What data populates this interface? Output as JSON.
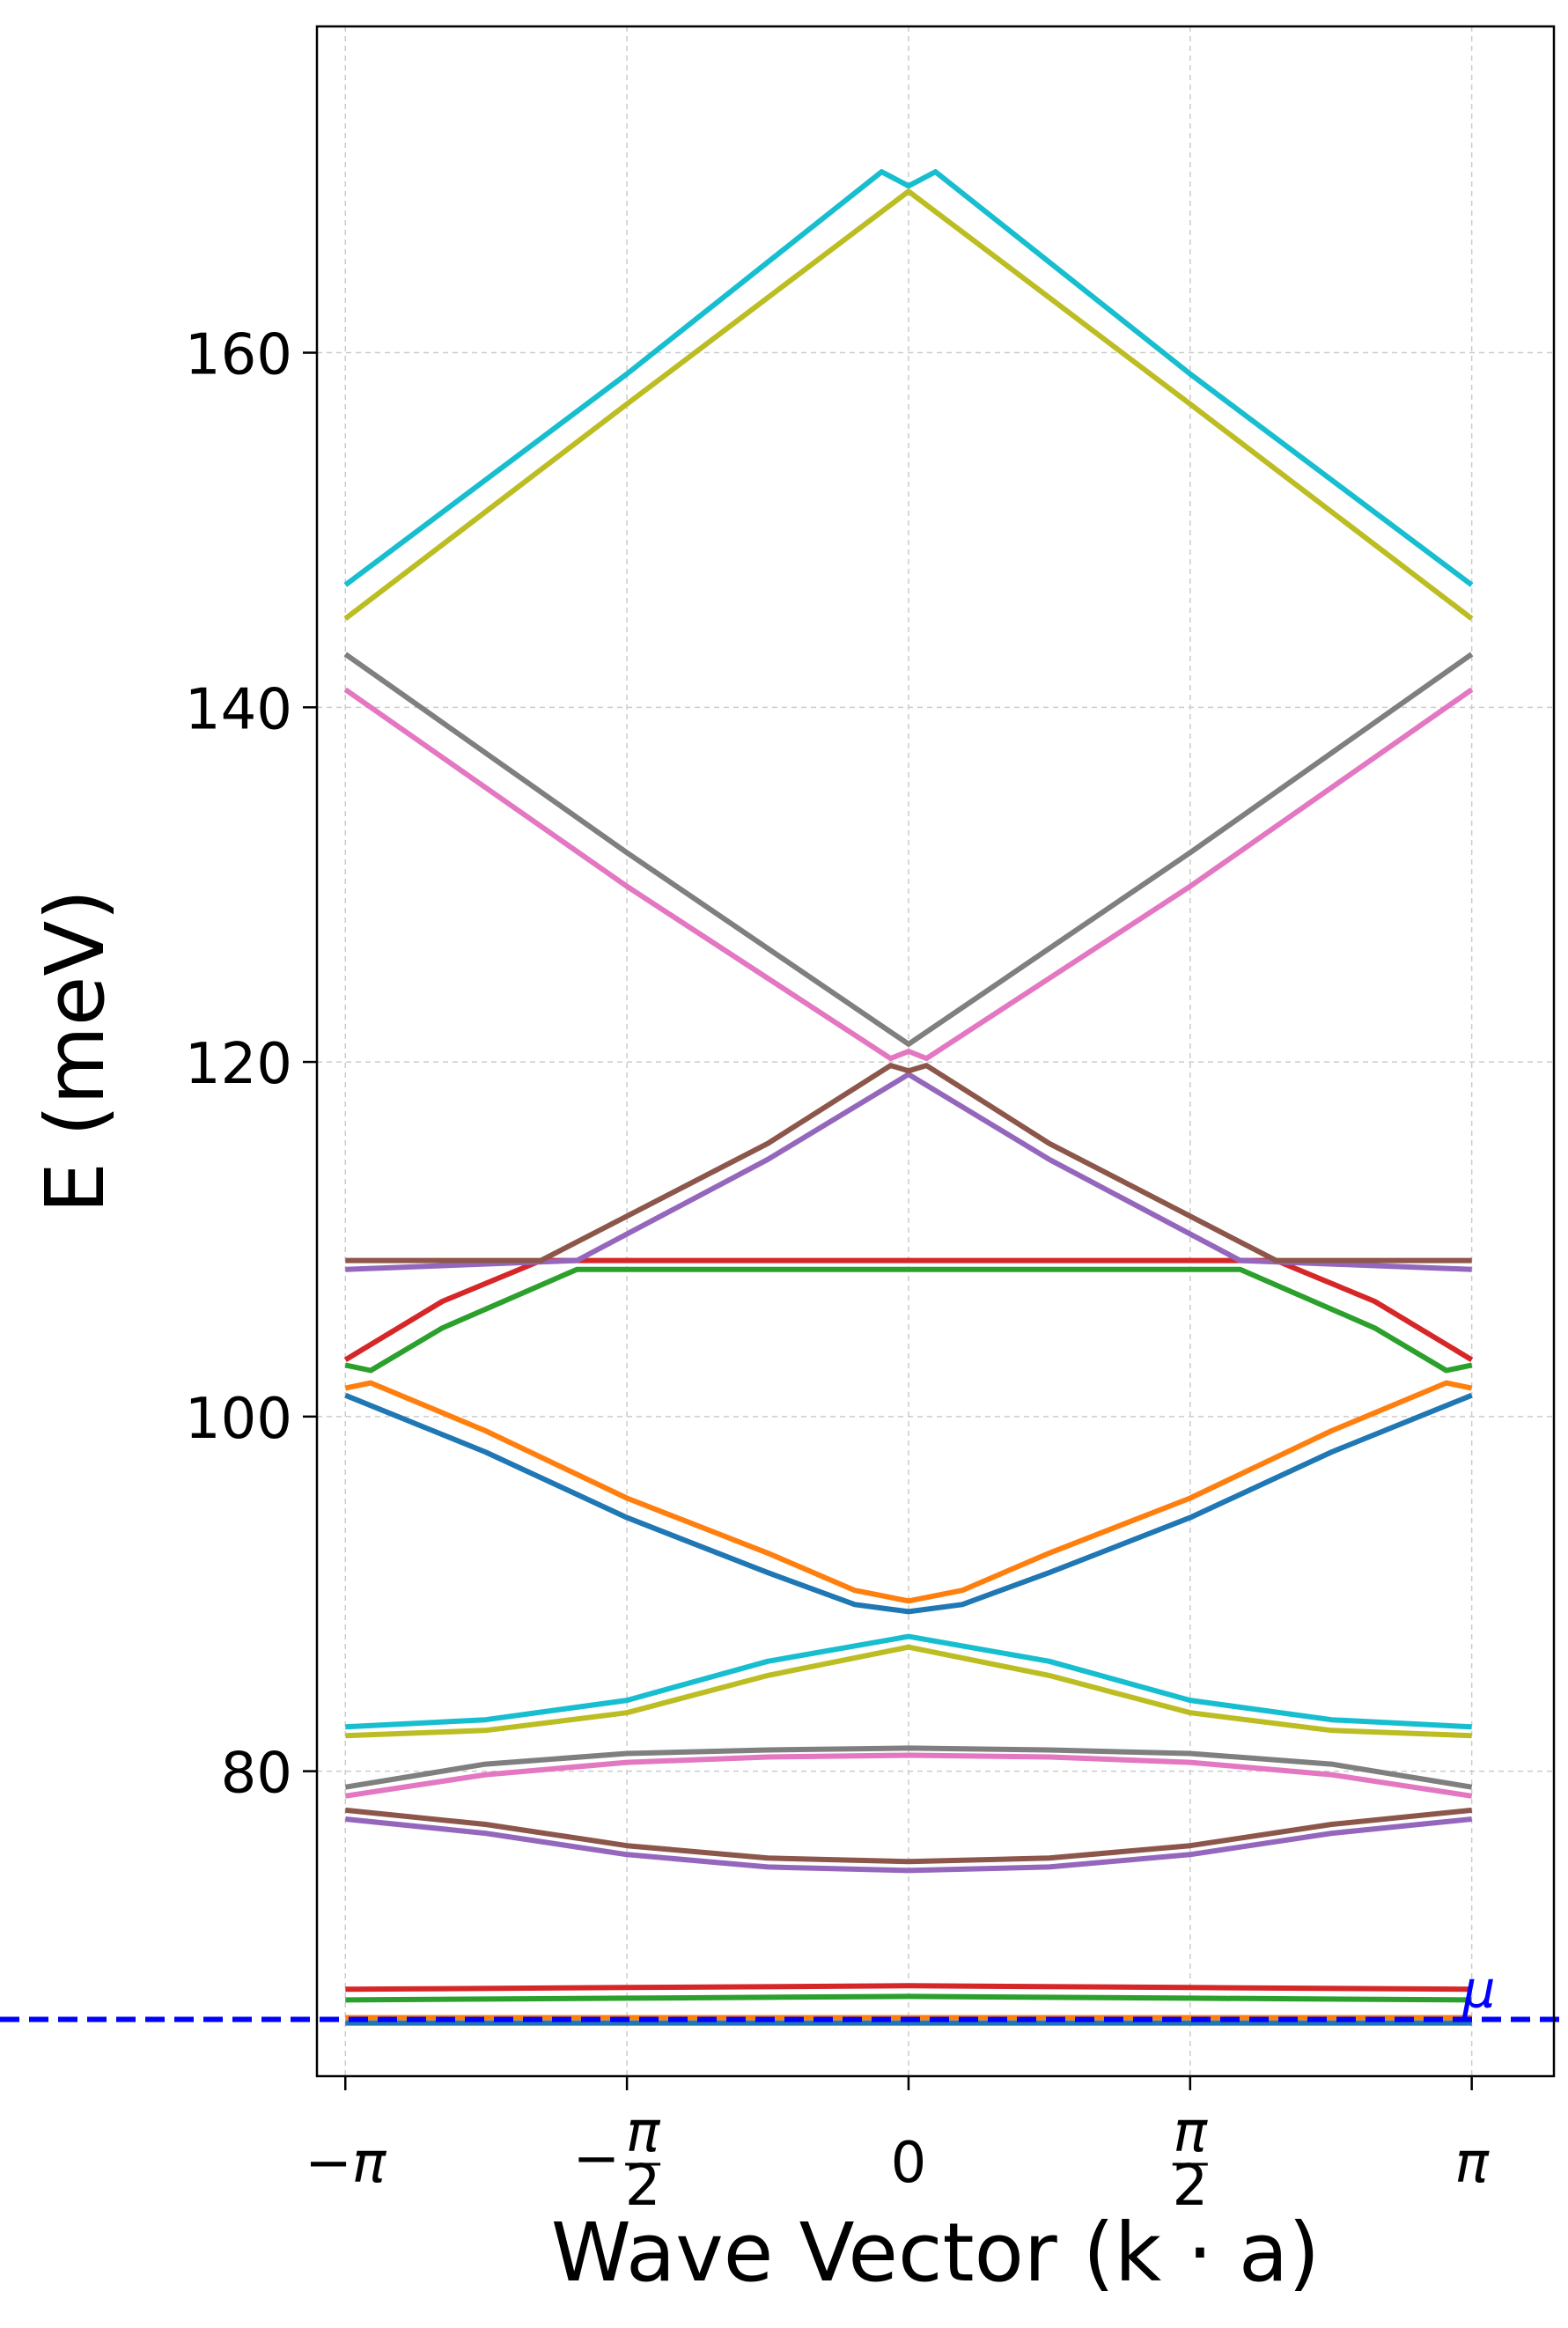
{
  "chart_data": {
    "type": "line",
    "title": "",
    "xlabel": "Wave Vector (k · a)",
    "ylabel": "E (meV)",
    "xlim": [
      -3.3,
      3.6
    ],
    "ylim": [
      62.8,
      178.4
    ],
    "grid": true,
    "x_ticks": [
      {
        "value": -3.14159,
        "label": "−π"
      },
      {
        "value": -1.5708,
        "label": "−π/2"
      },
      {
        "value": 0,
        "label": "0"
      },
      {
        "value": 1.5708,
        "label": "π/2"
      },
      {
        "value": 3.14159,
        "label": "π"
      }
    ],
    "y_ticks": [
      80,
      100,
      120,
      140,
      160
    ],
    "chemical_potential": {
      "label": "μ",
      "value": 66.0,
      "color": "#0000ff"
    },
    "series": [
      {
        "color": "#1f77b4",
        "x": [
          -3.14159,
          -1.5708,
          0,
          1.5708,
          3.14159
        ],
        "y": [
          65.8,
          65.8,
          65.8,
          65.8,
          65.8
        ]
      },
      {
        "color": "#ff7f0e",
        "x": [
          -3.14159,
          -1.5708,
          0,
          1.5708,
          3.14159
        ],
        "y": [
          66.1,
          66.1,
          66.1,
          66.1,
          66.1
        ]
      },
      {
        "color": "#2ca02c",
        "x": [
          -3.14159,
          -1.5708,
          0,
          1.5708,
          3.14159
        ],
        "y": [
          67.1,
          67.2,
          67.3,
          67.2,
          67.1
        ]
      },
      {
        "color": "#d62728",
        "x": [
          -3.14159,
          -1.5708,
          0,
          1.5708,
          3.14159
        ],
        "y": [
          67.7,
          67.8,
          67.9,
          67.8,
          67.7
        ]
      },
      {
        "color": "#9467bd",
        "x": [
          -3.14159,
          -2.36,
          -1.5708,
          -0.785,
          0,
          0.785,
          1.5708,
          2.36,
          3.14159
        ],
        "y": [
          77.3,
          76.5,
          75.3,
          74.6,
          74.4,
          74.6,
          75.3,
          76.5,
          77.3
        ]
      },
      {
        "color": "#8c564b",
        "x": [
          -3.14159,
          -2.36,
          -1.5708,
          -0.785,
          0,
          0.785,
          1.5708,
          2.36,
          3.14159
        ],
        "y": [
          77.8,
          77.0,
          75.8,
          75.1,
          74.9,
          75.1,
          75.8,
          77.0,
          77.8
        ]
      },
      {
        "color": "#e377c2",
        "x": [
          -3.14159,
          -2.36,
          -1.5708,
          -0.785,
          0,
          0.785,
          1.5708,
          2.36,
          3.14159
        ],
        "y": [
          78.6,
          79.8,
          80.5,
          80.8,
          80.9,
          80.8,
          80.5,
          79.8,
          78.6
        ]
      },
      {
        "color": "#7f7f7f",
        "x": [
          -3.14159,
          -2.36,
          -1.5708,
          -0.785,
          0,
          0.785,
          1.5708,
          2.36,
          3.14159
        ],
        "y": [
          79.1,
          80.4,
          81.0,
          81.2,
          81.3,
          81.2,
          81.0,
          80.4,
          79.1
        ]
      },
      {
        "color": "#bcbd22",
        "x": [
          -3.14159,
          -2.36,
          -1.5708,
          -0.785,
          0,
          0.785,
          1.5708,
          2.36,
          3.14159
        ],
        "y": [
          82.0,
          82.3,
          83.3,
          85.4,
          87.0,
          85.4,
          83.3,
          82.3,
          82.0
        ]
      },
      {
        "color": "#17becf",
        "x": [
          -3.14159,
          -2.36,
          -1.5708,
          -0.785,
          0,
          0.785,
          1.5708,
          2.36,
          3.14159
        ],
        "y": [
          82.5,
          82.9,
          84.0,
          86.2,
          87.6,
          86.2,
          84.0,
          82.9,
          82.5
        ]
      },
      {
        "color": "#1f77b4",
        "x": [
          -3.14159,
          -2.36,
          -1.5708,
          -0.785,
          -0.3,
          0,
          0.3,
          0.785,
          1.5708,
          2.36,
          3.14159
        ],
        "y": [
          101.2,
          98.0,
          94.3,
          91.2,
          89.4,
          89.0,
          89.4,
          91.2,
          94.3,
          98.0,
          101.2
        ]
      },
      {
        "color": "#ff7f0e",
        "x": [
          -3.14159,
          -3.0,
          -2.36,
          -1.5708,
          -0.785,
          -0.3,
          0,
          0.3,
          0.785,
          1.5708,
          2.36,
          3.0,
          3.14159
        ],
        "y": [
          101.6,
          101.9,
          99.2,
          95.4,
          92.3,
          90.2,
          89.6,
          90.2,
          92.3,
          95.4,
          99.2,
          101.9,
          101.6
        ]
      },
      {
        "color": "#2ca02c",
        "x": [
          -3.14159,
          -3.0,
          -2.6,
          -1.85,
          0,
          1.85,
          2.6,
          3.0,
          3.14159
        ],
        "y": [
          102.9,
          102.6,
          105.0,
          108.3,
          108.3,
          108.3,
          105.0,
          102.6,
          102.9
        ]
      },
      {
        "color": "#d62728",
        "x": [
          -3.14159,
          -2.6,
          -2.05,
          0,
          2.05,
          2.6,
          3.14159
        ],
        "y": [
          103.2,
          106.5,
          108.8,
          108.8,
          108.8,
          106.5,
          103.2
        ]
      },
      {
        "color": "#9467bd",
        "x": [
          -3.14159,
          -1.85,
          -0.785,
          0,
          0.785,
          1.85,
          3.14159
        ],
        "y": [
          108.3,
          108.8,
          114.5,
          119.3,
          114.5,
          108.8,
          108.3
        ]
      },
      {
        "color": "#8c564b",
        "x": [
          -3.14159,
          -2.05,
          -0.785,
          -0.1,
          0,
          0.1,
          0.785,
          2.05,
          3.14159
        ],
        "y": [
          108.8,
          108.8,
          115.4,
          119.8,
          119.5,
          119.8,
          115.4,
          108.8,
          108.8
        ]
      },
      {
        "color": "#e377c2",
        "x": [
          -3.14159,
          -1.5708,
          -0.1,
          0,
          0.1,
          1.5708,
          3.14159
        ],
        "y": [
          141.0,
          129.9,
          120.2,
          120.6,
          120.2,
          129.9,
          141.0
        ]
      },
      {
        "color": "#7f7f7f",
        "x": [
          -3.14159,
          -1.5708,
          0,
          1.5708,
          3.14159
        ],
        "y": [
          143.0,
          131.8,
          121.0,
          131.8,
          143.0
        ]
      },
      {
        "color": "#bcbd22",
        "x": [
          -3.14159,
          -1.5708,
          0,
          1.5708,
          3.14159
        ],
        "y": [
          145.0,
          157.1,
          169.1,
          157.1,
          145.0
        ]
      },
      {
        "color": "#17becf",
        "x": [
          -3.14159,
          -1.5708,
          -0.15,
          0,
          0.15,
          1.5708,
          3.14159
        ],
        "y": [
          146.9,
          158.8,
          170.2,
          169.4,
          170.2,
          158.8,
          146.9
        ]
      }
    ]
  }
}
